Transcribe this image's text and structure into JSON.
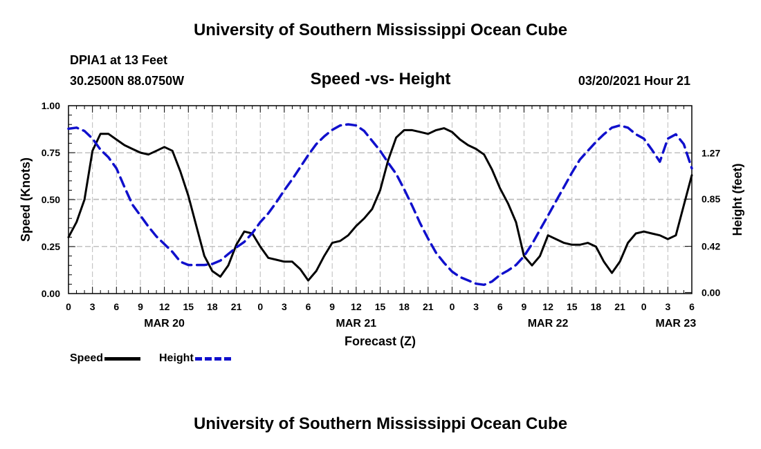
{
  "header": {
    "title": "University of Southern Mississippi Ocean Cube",
    "station": "DPIA1 at 13 Feet",
    "coords": "30.2500N 88.0750W",
    "date_hour": "03/20/2021 Hour 21"
  },
  "footer": {
    "title": "University of Southern Mississippi Ocean Cube"
  },
  "colors": {
    "speed": "#000000",
    "height": "#1010cc",
    "grid": "#bbbbbb"
  },
  "chart_data": {
    "type": "line",
    "title": "Speed -vs- Height",
    "xlabel": "Forecast (Z)",
    "ylabel": "Speed (Knots)",
    "y2label": "Height (feet)",
    "xlim": [
      0,
      78
    ],
    "ylim": [
      0,
      1
    ],
    "y2lim": [
      -0.01,
      1.7
    ],
    "grid": true,
    "x_ticks": [
      0,
      3,
      6,
      9,
      12,
      15,
      18,
      21,
      24,
      27,
      30,
      33,
      36,
      39,
      42,
      45,
      48,
      51,
      54,
      57,
      60,
      63,
      66,
      69,
      72,
      75,
      78
    ],
    "x_tick_labels": [
      "0",
      "3",
      "6",
      "9",
      "12",
      "15",
      "18",
      "21",
      "0",
      "3",
      "6",
      "9",
      "12",
      "15",
      "18",
      "21",
      "0",
      "3",
      "6",
      "9",
      "12",
      "15",
      "18",
      "21",
      "0",
      "3",
      "6"
    ],
    "date_labels": [
      {
        "x": 12,
        "label": "MAR 20"
      },
      {
        "x": 36,
        "label": "MAR 21"
      },
      {
        "x": 60,
        "label": "MAR 22"
      },
      {
        "x": 76,
        "label": "MAR 23"
      }
    ],
    "y_ticks": [
      0,
      0.25,
      0.5,
      0.75,
      1.0
    ],
    "y_tick_labels": [
      "0.00",
      "0.25",
      "0.50",
      "0.75",
      "1.00"
    ],
    "y2_ticks": [
      0,
      0.42,
      0.85,
      1.27
    ],
    "y2_tick_labels": [
      "0.00",
      "0.42",
      "0.85",
      "1.27"
    ],
    "legend": [
      {
        "name": "Speed",
        "style": "solid"
      },
      {
        "name": "Height",
        "style": "dashed"
      }
    ],
    "series": [
      {
        "name": "Speed",
        "axis": "left",
        "style": "solid",
        "x": [
          0,
          1,
          2,
          3,
          4,
          5,
          6,
          7,
          8,
          9,
          10,
          11,
          12,
          13,
          14,
          15,
          16,
          17,
          18,
          19,
          20,
          21,
          22,
          23,
          24,
          25,
          26,
          27,
          28,
          29,
          30,
          31,
          32,
          33,
          34,
          35,
          36,
          37,
          38,
          39,
          40,
          41,
          42,
          43,
          44,
          45,
          46,
          47,
          48,
          49,
          50,
          51,
          52,
          53,
          54,
          55,
          56,
          57,
          58,
          59,
          60,
          61,
          62,
          63,
          64,
          65,
          66,
          67,
          68,
          69,
          70,
          71,
          72,
          73,
          74,
          75,
          76,
          77,
          78
        ],
        "values": [
          0.3,
          0.38,
          0.5,
          0.76,
          0.85,
          0.85,
          0.82,
          0.79,
          0.77,
          0.75,
          0.74,
          0.76,
          0.78,
          0.76,
          0.65,
          0.52,
          0.36,
          0.2,
          0.12,
          0.09,
          0.15,
          0.26,
          0.33,
          0.32,
          0.25,
          0.19,
          0.18,
          0.17,
          0.17,
          0.13,
          0.07,
          0.12,
          0.2,
          0.27,
          0.28,
          0.31,
          0.36,
          0.4,
          0.45,
          0.55,
          0.71,
          0.83,
          0.87,
          0.87,
          0.86,
          0.85,
          0.87,
          0.88,
          0.86,
          0.82,
          0.79,
          0.77,
          0.74,
          0.66,
          0.56,
          0.48,
          0.38,
          0.2,
          0.15,
          0.2,
          0.31,
          0.29,
          0.27,
          0.26,
          0.26,
          0.27,
          0.25,
          0.17,
          0.11,
          0.17,
          0.27,
          0.32,
          0.33,
          0.32,
          0.31,
          0.29,
          0.31,
          0.47,
          0.63
        ]
      },
      {
        "name": "Height",
        "axis": "right",
        "style": "dashed",
        "x": [
          0,
          1,
          2,
          3,
          4,
          5,
          6,
          7,
          8,
          9,
          10,
          11,
          12,
          13,
          14,
          15,
          16,
          17,
          18,
          19,
          20,
          21,
          22,
          23,
          24,
          25,
          26,
          27,
          28,
          29,
          30,
          31,
          32,
          33,
          34,
          35,
          36,
          37,
          38,
          39,
          40,
          41,
          42,
          43,
          44,
          45,
          46,
          47,
          48,
          49,
          50,
          51,
          52,
          53,
          54,
          55,
          56,
          57,
          58,
          59,
          60,
          61,
          62,
          63,
          64,
          65,
          66,
          67,
          68,
          69,
          70,
          71,
          72,
          73,
          74,
          75,
          76,
          77,
          78
        ],
        "values": [
          1.49,
          1.5,
          1.47,
          1.4,
          1.3,
          1.23,
          1.13,
          0.96,
          0.8,
          0.7,
          0.6,
          0.51,
          0.44,
          0.37,
          0.28,
          0.25,
          0.25,
          0.25,
          0.26,
          0.29,
          0.35,
          0.41,
          0.46,
          0.54,
          0.64,
          0.72,
          0.82,
          0.93,
          1.03,
          1.14,
          1.25,
          1.35,
          1.42,
          1.48,
          1.52,
          1.53,
          1.52,
          1.47,
          1.38,
          1.29,
          1.18,
          1.08,
          0.94,
          0.79,
          0.63,
          0.49,
          0.36,
          0.27,
          0.19,
          0.14,
          0.11,
          0.08,
          0.07,
          0.1,
          0.16,
          0.2,
          0.25,
          0.33,
          0.44,
          0.57,
          0.7,
          0.83,
          0.96,
          1.09,
          1.21,
          1.29,
          1.37,
          1.44,
          1.5,
          1.52,
          1.5,
          1.44,
          1.4,
          1.3,
          1.19,
          1.4,
          1.44,
          1.35,
          1.13
        ]
      }
    ]
  }
}
